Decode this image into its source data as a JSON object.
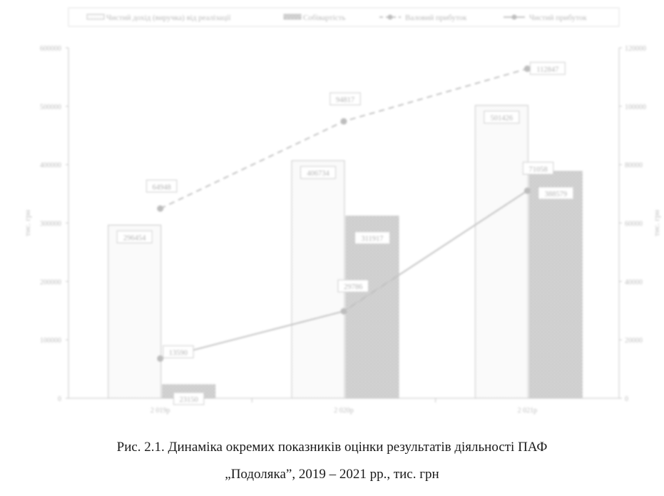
{
  "chart_data": {
    "type": "bar",
    "categories": [
      "2 019р",
      "2 020р",
      "2 021р"
    ],
    "series": [
      {
        "name": "Чистий дохід (виручка) від реалізації",
        "kind": "bar",
        "axis": "left",
        "values": [
          296454,
          406734,
          501426
        ]
      },
      {
        "name": "Собівартість",
        "kind": "bar",
        "axis": "left",
        "values": [
          23150,
          311917,
          388579
        ]
      },
      {
        "name": "Валовий прибуток",
        "kind": "line",
        "style": "dashed",
        "axis": "right",
        "values": [
          64948,
          94817,
          112847
        ]
      },
      {
        "name": "Чистий прибуток",
        "kind": "line",
        "style": "solid",
        "axis": "right",
        "values": [
          13590,
          29786,
          71058
        ]
      }
    ],
    "ylabel": "тис. грн",
    "y2label": "тис. грн",
    "ylim": [
      0,
      600000
    ],
    "y2lim": [
      0,
      120000
    ],
    "yticks": [
      "0",
      "100000",
      "200000",
      "300000",
      "400000",
      "500000",
      "600000"
    ],
    "y2ticks": [
      "0",
      "20000",
      "40000",
      "60000",
      "80000",
      "100000",
      "120000"
    ],
    "legend_position": "top",
    "grid": false
  },
  "caption": {
    "line1": "Рис. 2.1. Динаміка окремих  показників оцінки результатів діяльності ПАФ",
    "line2": "„Подоляка”, 2019 – 2021 рр., тис. грн"
  },
  "colors": {
    "bar_outline": "#c9c9c9",
    "bar2_fill": "#d6d6d6",
    "line": "#c4c4c4",
    "text": "#b8b8b8",
    "caption": "#1a1a1a"
  }
}
